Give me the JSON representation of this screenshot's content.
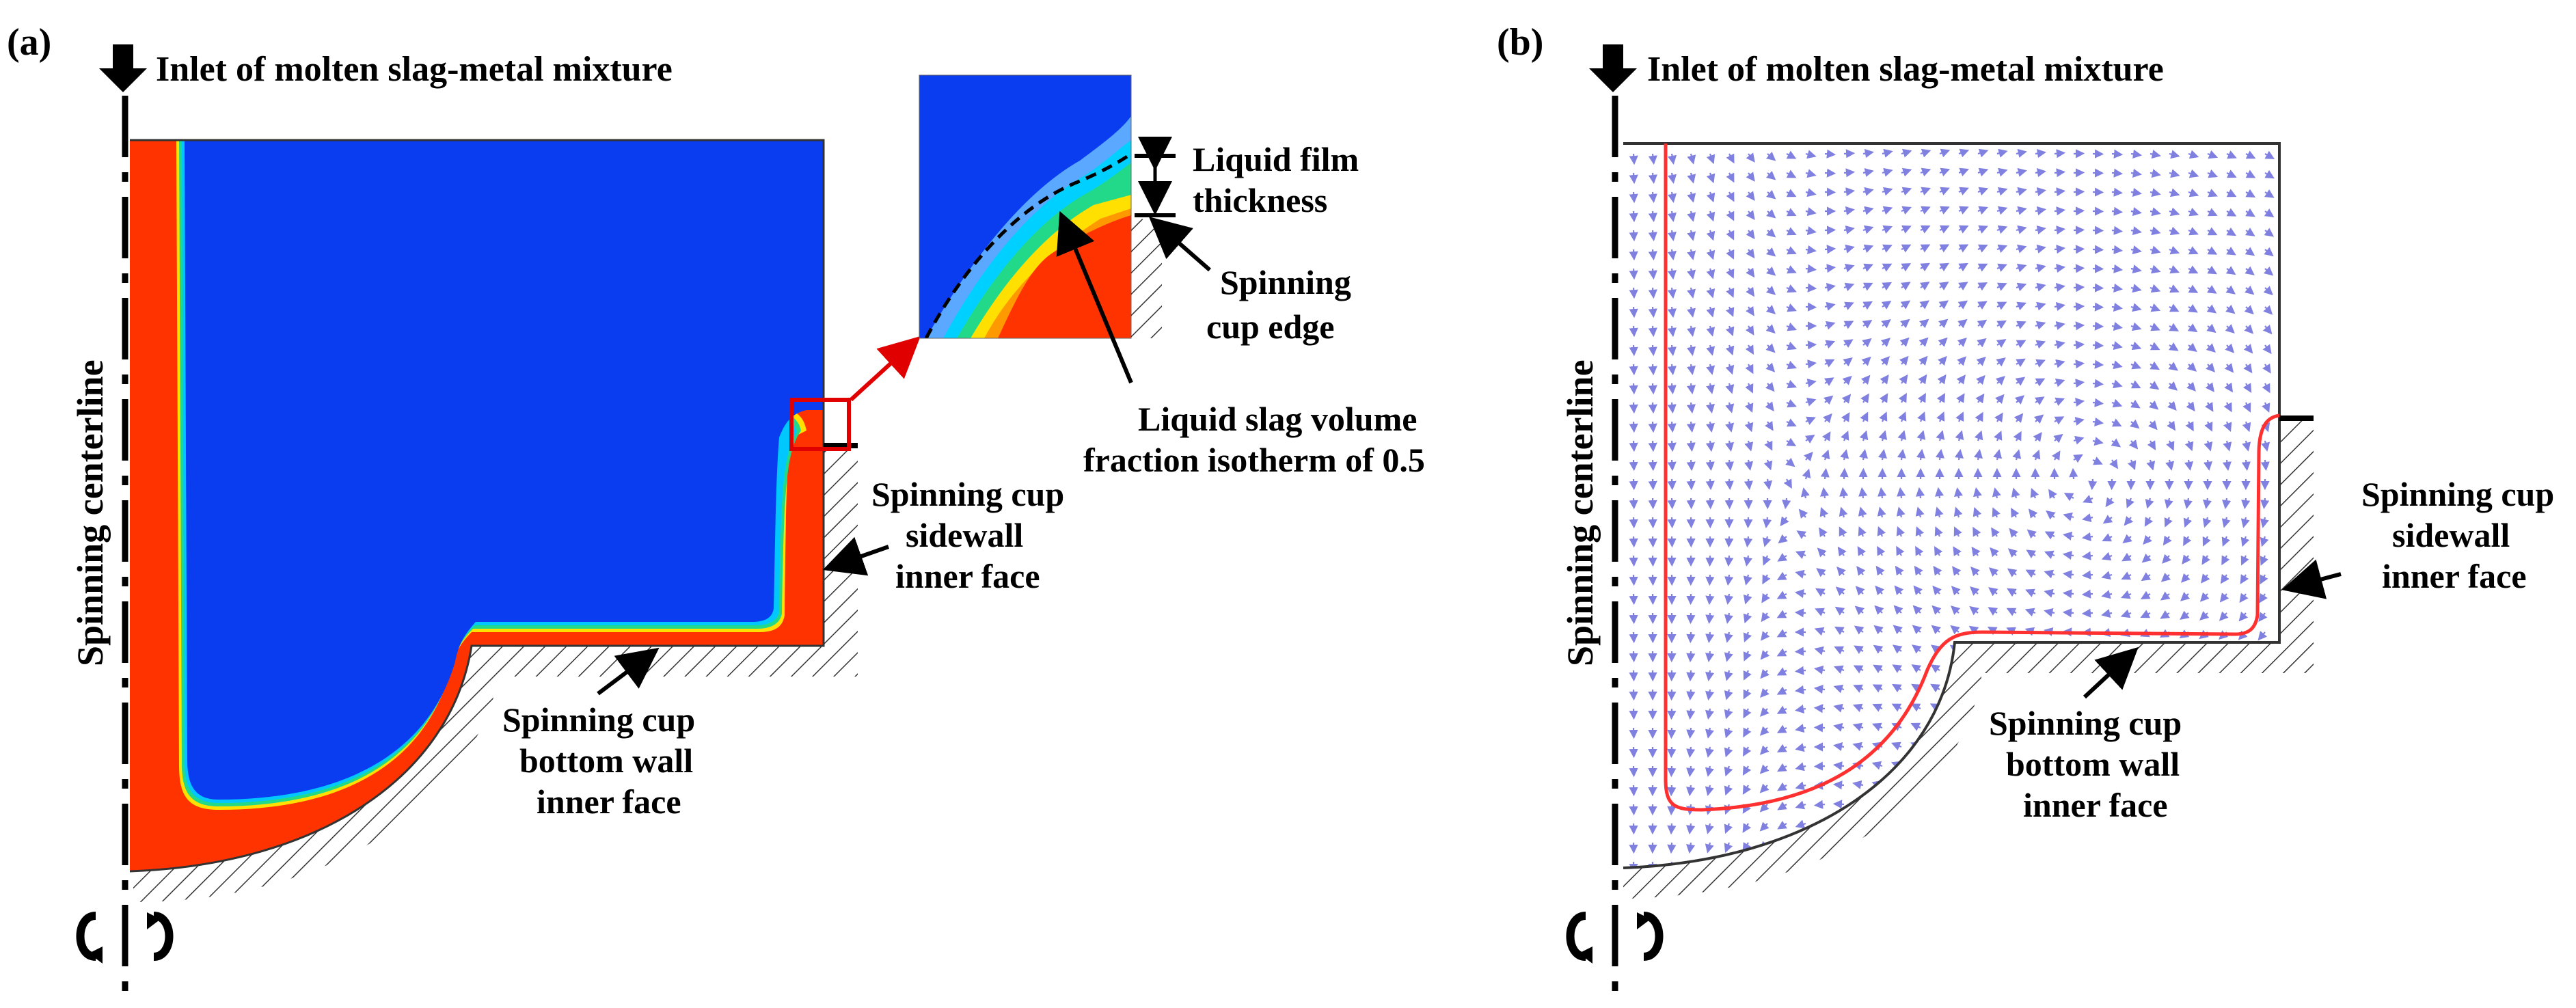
{
  "figure": {
    "panel_a": {
      "label": "(a)",
      "inlet_label": "Inlet of molten slag-metal mixture",
      "centerline_label": "Spinning centerline",
      "annotations": {
        "sidewall": [
          "Spinning cup",
          "sidewall",
          "inner face"
        ],
        "bottom": [
          "Spinning cup",
          "bottom wall",
          "inner face"
        ],
        "film": [
          "Liquid film",
          "thickness"
        ],
        "edge": [
          "Spinning",
          "cup edge"
        ],
        "isotherm": [
          "Liquid slag volume",
          "fraction isotherm of 0.5"
        ]
      }
    },
    "panel_b": {
      "label": "(b)",
      "inlet_label": "Inlet of molten slag-metal mixture",
      "centerline_label": "Spinning centerline",
      "annotations": {
        "sidewall": [
          "Spinning cup",
          "sidewall",
          "inner face"
        ],
        "bottom": [
          "Spinning cup",
          "bottom wall",
          "inner face"
        ]
      }
    },
    "colors": {
      "slag_blue": "#0a3cf0",
      "metal_red": "#ff3300",
      "cyan": "#00c8ff",
      "green": "#22d98a",
      "yellow": "#ffe000",
      "orange": "#ff9900",
      "vector_blue": "#8080e0",
      "isotherm_red": "#ff3030",
      "zoom_box_red": "#e00000"
    }
  }
}
